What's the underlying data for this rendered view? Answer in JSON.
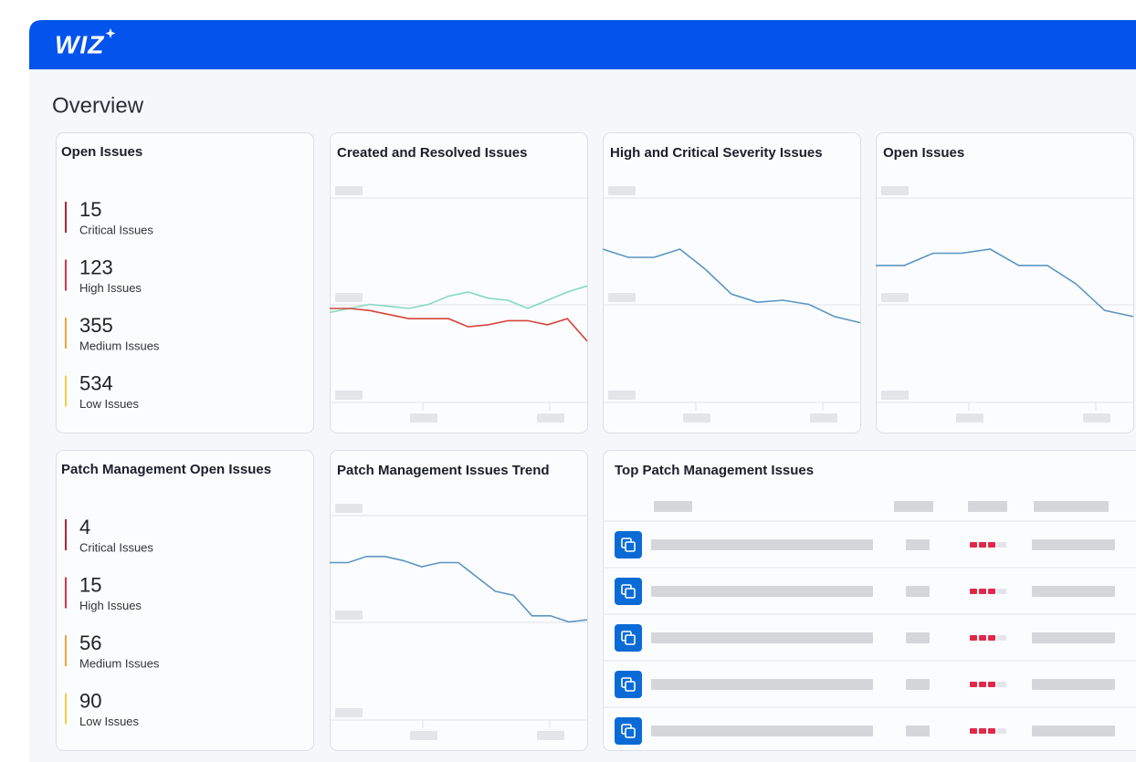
{
  "header": {
    "logo": "WIZ"
  },
  "page_title": "Overview",
  "open_issues": {
    "title": "Open Issues",
    "items": [
      {
        "value": 15,
        "label": "Critical Issues",
        "color": "#b3263a"
      },
      {
        "value": 123,
        "label": "High Issues",
        "color": "#e03447"
      },
      {
        "value": 355,
        "label": "Medium Issues",
        "color": "#f2a33a"
      },
      {
        "value": 534,
        "label": "Low Issues",
        "color": "#f7cf3f"
      }
    ]
  },
  "created_resolved": {
    "type": "line",
    "title": "Created and Resolved Issues",
    "ylim": [
      0,
      100
    ],
    "series": [
      {
        "color": "#86d8c0",
        "values": [
          44,
          46,
          48,
          47,
          46,
          48,
          52,
          54,
          51,
          50,
          46,
          50,
          54,
          57
        ]
      },
      {
        "color": "#d6443b",
        "values": [
          46,
          46,
          45,
          43,
          41,
          41,
          41,
          37,
          38,
          40,
          40,
          38,
          41,
          30
        ]
      }
    ]
  },
  "high_critical": {
    "type": "line",
    "title": "High and Critical Severity Issues",
    "ylim": [
      0,
      100
    ],
    "series": [
      {
        "color": "#5b95c4",
        "values": [
          75,
          71,
          71,
          75,
          65,
          53,
          49,
          50,
          48,
          42,
          39
        ]
      }
    ]
  },
  "open_issues_trend": {
    "type": "line",
    "title": "Open Issues",
    "ylim": [
      0,
      100
    ],
    "series": [
      {
        "color": "#5b95c4",
        "values": [
          67,
          67,
          73,
          73,
          75,
          67,
          67,
          58,
          45,
          42
        ]
      }
    ]
  },
  "patch_open_issues": {
    "title": "Patch Management Open Issues",
    "items": [
      {
        "value": 4,
        "label": "Critical Issues",
        "color": "#b3263a"
      },
      {
        "value": 15,
        "label": "High Issues",
        "color": "#e03447"
      },
      {
        "value": 56,
        "label": "Medium Issues",
        "color": "#f2a33a"
      },
      {
        "value": 90,
        "label": "Low Issues",
        "color": "#f7cf3f"
      }
    ]
  },
  "patch_trend": {
    "type": "line",
    "title": "Patch Management Issues Trend",
    "ylim": [
      0,
      100
    ],
    "series": [
      {
        "color": "#5b95c4",
        "values": [
          77,
          77,
          80,
          80,
          78,
          75,
          77,
          77,
          70,
          63,
          61,
          51,
          51,
          48,
          49
        ]
      }
    ]
  },
  "top_patch": {
    "title": "Top Patch Management Issues"
  }
}
